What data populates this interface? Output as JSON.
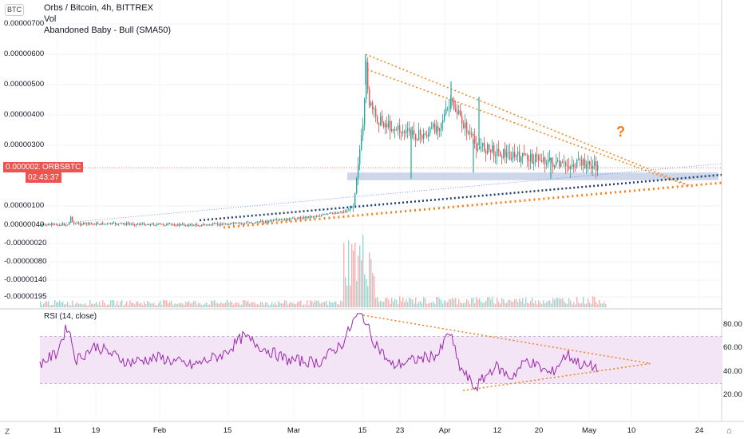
{
  "header": {
    "currency_button": "BTC",
    "title": "Orbs / Bitcoin, 4h, BITTREX",
    "indicator_vol": "Vol",
    "indicator_pattern": "Abandoned Baby - Bull (SMA50)",
    "rsi_label": "RSI (14, close)"
  },
  "price_badge": {
    "price": "0.00000226",
    "symbol": "ORBSBTC",
    "countdown": "02:43:37"
  },
  "annotation": {
    "text": "?"
  },
  "bottom_bar": {
    "left_icon": "Z",
    "right_icon": "⌂"
  },
  "colors": {
    "up": "#26a69a",
    "down": "#ef5350",
    "trend_orange": "#f57f17",
    "trend_navy": "#1f3e73",
    "zone": "#b9c6e0",
    "rsi_line": "#9c27b0",
    "rsi_band": "#f3e5f5"
  },
  "chart_data": [
    {
      "type": "candlestick",
      "title": "Orbs / Bitcoin, 4h, BITTREX",
      "y_tick_labels": [
        "0.00000700",
        "0.00000600",
        "0.00000500",
        "0.00000400",
        "0.00000300",
        "0.00000100",
        "0.00000040",
        "-0.00000020",
        "-0.00000080",
        "-0.00000140",
        "-0.00000195"
      ],
      "x_tick_labels": [
        "11",
        "19",
        "Feb",
        "15",
        "Mar",
        "15",
        "23",
        "Apr",
        "12",
        "20",
        "May",
        "10",
        "24"
      ],
      "x_tick_positions": [
        72,
        120,
        200,
        285,
        368,
        454,
        501,
        557,
        623,
        675,
        738,
        791,
        876
      ],
      "price_path": [
        {
          "x": 50,
          "y": 4e-07
        },
        {
          "x": 85,
          "y": 4.2e-07
        },
        {
          "x": 88,
          "y": 6.5e-07
        },
        {
          "x": 92,
          "y": 4.4e-07
        },
        {
          "x": 150,
          "y": 4.4e-07
        },
        {
          "x": 250,
          "y": 4e-07
        },
        {
          "x": 300,
          "y": 4.5e-07
        },
        {
          "x": 350,
          "y": 5.5e-07
        },
        {
          "x": 400,
          "y": 7e-07
        },
        {
          "x": 435,
          "y": 8.5e-07
        },
        {
          "x": 442,
          "y": 1.1e-06
        },
        {
          "x": 448,
          "y": 2.5e-06
        },
        {
          "x": 455,
          "y": 3.7e-06
        },
        {
          "x": 458,
          "y": 5.6e-06
        },
        {
          "x": 462,
          "y": 4.4e-06
        },
        {
          "x": 470,
          "y": 3.9e-06
        },
        {
          "x": 490,
          "y": 3.6e-06
        },
        {
          "x": 510,
          "y": 3.4e-06
        },
        {
          "x": 530,
          "y": 3.3e-06
        },
        {
          "x": 550,
          "y": 3.7e-06
        },
        {
          "x": 565,
          "y": 4.4e-06
        },
        {
          "x": 580,
          "y": 3.7e-06
        },
        {
          "x": 595,
          "y": 3e-06
        },
        {
          "x": 620,
          "y": 2.8e-06
        },
        {
          "x": 650,
          "y": 2.6e-06
        },
        {
          "x": 680,
          "y": 2.55e-06
        },
        {
          "x": 700,
          "y": 2.3e-06
        },
        {
          "x": 730,
          "y": 2.4e-06
        },
        {
          "x": 748,
          "y": 2.26e-06
        }
      ],
      "spikes": [
        {
          "x": 458,
          "y_from": 6e-06,
          "y_to": 5e-06
        },
        {
          "x": 515,
          "y_from": 3.6e-06,
          "y_to": 1.9e-06
        },
        {
          "x": 565,
          "y_from": 5.1e-06,
          "y_to": 4.2e-06
        },
        {
          "x": 593,
          "y_from": 3.2e-06,
          "y_to": 2.1e-06
        },
        {
          "x": 600,
          "y_from": 4.6e-06,
          "y_to": 3e-06
        },
        {
          "x": 690,
          "y_from": 2.6e-06,
          "y_to": 1.9e-06
        }
      ],
      "support_zone": {
        "x_from": 435,
        "x_to": 900,
        "y_from": 2.1e-06,
        "y_to": 1.85e-06
      },
      "price_line": 2.26e-06
    },
    {
      "type": "bar",
      "title": "Vol",
      "note": "volume bars, relative heights 0-1",
      "clusters": [
        {
          "x_from": 50,
          "x_to": 430,
          "height": 0.08
        },
        {
          "x_from": 430,
          "x_to": 470,
          "height": 0.85
        },
        {
          "x_from": 470,
          "x_to": 760,
          "height": 0.12
        }
      ]
    },
    {
      "type": "line",
      "title": "RSI (14, close)",
      "y_tick_labels": [
        "80.00",
        "60.00",
        "40.00",
        "20.00"
      ],
      "ylim": [
        10,
        90
      ],
      "band": [
        30,
        70
      ],
      "path": [
        {
          "x": 50,
          "y": 47
        },
        {
          "x": 70,
          "y": 55
        },
        {
          "x": 85,
          "y": 80
        },
        {
          "x": 95,
          "y": 50
        },
        {
          "x": 120,
          "y": 62
        },
        {
          "x": 160,
          "y": 48
        },
        {
          "x": 200,
          "y": 52
        },
        {
          "x": 240,
          "y": 45
        },
        {
          "x": 280,
          "y": 55
        },
        {
          "x": 305,
          "y": 70
        },
        {
          "x": 330,
          "y": 60
        },
        {
          "x": 360,
          "y": 50
        },
        {
          "x": 400,
          "y": 48
        },
        {
          "x": 430,
          "y": 65
        },
        {
          "x": 445,
          "y": 86
        },
        {
          "x": 455,
          "y": 88
        },
        {
          "x": 465,
          "y": 70
        },
        {
          "x": 490,
          "y": 45
        },
        {
          "x": 520,
          "y": 50
        },
        {
          "x": 550,
          "y": 55
        },
        {
          "x": 563,
          "y": 75
        },
        {
          "x": 575,
          "y": 45
        },
        {
          "x": 595,
          "y": 26
        },
        {
          "x": 620,
          "y": 45
        },
        {
          "x": 640,
          "y": 35
        },
        {
          "x": 660,
          "y": 50
        },
        {
          "x": 690,
          "y": 38
        },
        {
          "x": 710,
          "y": 55
        },
        {
          "x": 730,
          "y": 45
        },
        {
          "x": 748,
          "y": 44
        }
      ]
    }
  ]
}
